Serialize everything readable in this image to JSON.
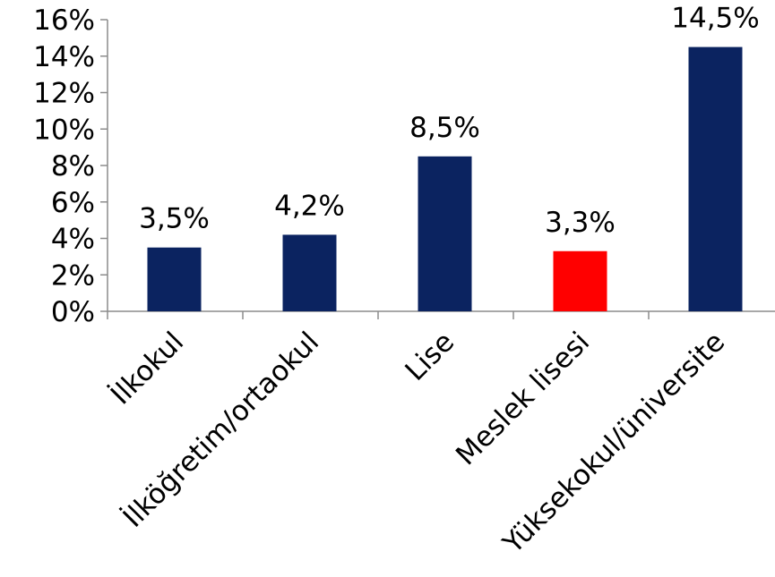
{
  "chart_data": {
    "type": "bar",
    "title": "",
    "xlabel": "",
    "ylabel": "",
    "ylim": [
      0,
      16
    ],
    "yticks": [
      "0%",
      "2%",
      "4%",
      "6%",
      "8%",
      "10%",
      "12%",
      "14%",
      "16%"
    ],
    "ytick_values": [
      0,
      2,
      4,
      6,
      8,
      10,
      12,
      14,
      16
    ],
    "categories": [
      "İlkokul",
      "İlköğretim/ortaokul",
      "Lise",
      "Meslek lisesi",
      "Yüksekokul/üniversite"
    ],
    "values": [
      3.5,
      4.2,
      8.5,
      3.3,
      14.5
    ],
    "data_labels": [
      "3,5%",
      "4,2%",
      "8,5%",
      "3,3%",
      "14,5%"
    ],
    "colors": [
      "#0b2360",
      "#0b2360",
      "#0b2360",
      "#ff0000",
      "#0b2360"
    ],
    "grid": false,
    "legend": "none"
  }
}
